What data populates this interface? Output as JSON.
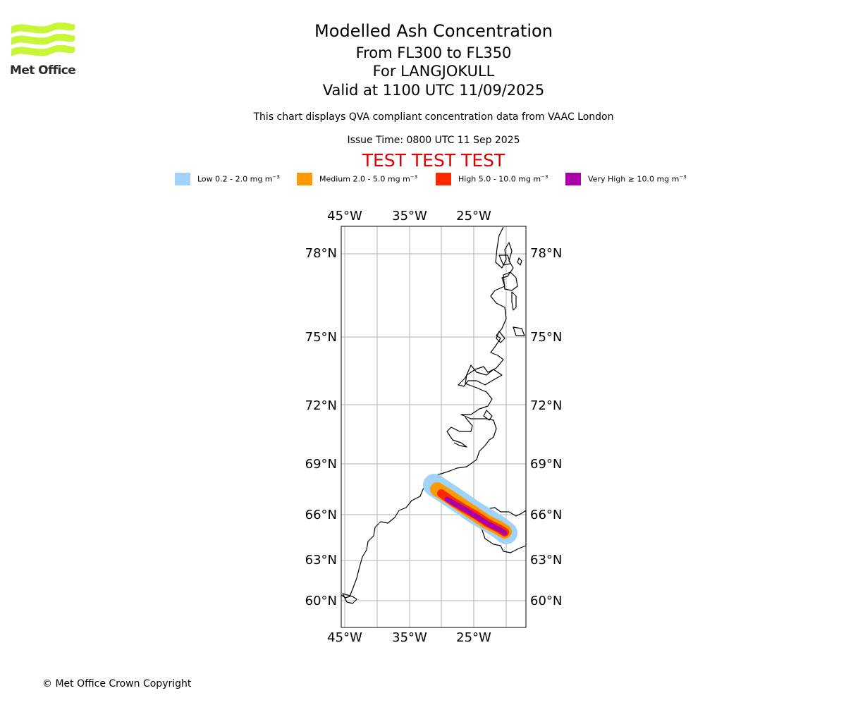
{
  "logo": {
    "text": "Met Office",
    "color": "#c8f534"
  },
  "header": {
    "title": "Modelled Ash Concentration",
    "levels": "From FL300 to FL350",
    "volcano": "For LANGJOKULL",
    "valid": "Valid at 1100 UTC 11/09/2025",
    "description": "This chart displays QVA compliant concentration data from VAAC London",
    "issue_time": "Issue Time: 0800 UTC 11 Sep 2025",
    "test_banner": "TEST TEST TEST",
    "test_color": "#dd0000"
  },
  "legend": [
    {
      "label": "Low 0.2 - 2.0 mg m",
      "sup": "−3",
      "color": "#a0d2fa"
    },
    {
      "label": "Medium 2.0 - 5.0 mg m",
      "sup": "−3",
      "color": "#ff9900"
    },
    {
      "label": "High 5.0 - 10.0 mg m",
      "sup": "−3",
      "color": "#ff2800"
    },
    {
      "label": "Very High  ≥  10.0 mg m",
      "sup": "−3",
      "color": "#aa00aa"
    }
  ],
  "map": {
    "lon_ticks": [
      "45°W",
      "35°W",
      "25°W"
    ],
    "lat_ticks": [
      "78°N",
      "75°N",
      "72°N",
      "69°N",
      "66°N",
      "63°N",
      "60°N"
    ],
    "gridlines": true
  },
  "footer": {
    "copyright": "© Met Office Crown Copyright"
  }
}
